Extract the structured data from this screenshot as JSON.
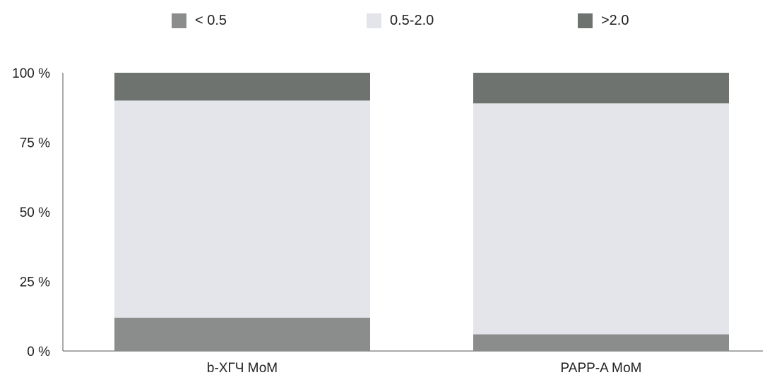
{
  "chart_data": {
    "type": "bar",
    "stacked": true,
    "percent": true,
    "categories": [
      "b-ХГЧ МоМ",
      "PAPP-A МоМ"
    ],
    "series": [
      {
        "name": "< 0.5",
        "values": [
          12,
          6
        ],
        "color": "#8a8d8b"
      },
      {
        "name": "0.5-2.0",
        "values": [
          78,
          83
        ],
        "color": "#e3e5ea"
      },
      {
        "name": ">2.0",
        "values": [
          10,
          11
        ],
        "color": "#6e7370"
      }
    ],
    "y_ticks": [
      "0 %",
      "25 %",
      "50 %",
      "75 %",
      "100 %"
    ],
    "ylim": [
      0,
      100
    ],
    "legend_position": "top",
    "grid": false
  }
}
